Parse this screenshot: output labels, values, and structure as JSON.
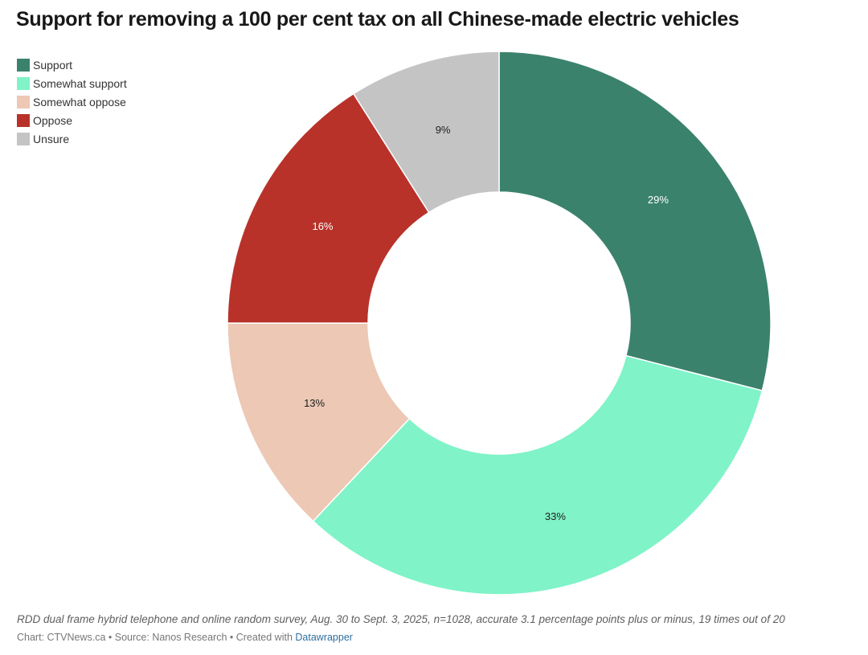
{
  "chart_data": {
    "type": "pie",
    "title": "Support for removing a 100 per cent tax on all Chinese-made electric vehicles",
    "categories": [
      "Support",
      "Somewhat support",
      "Somewhat oppose",
      "Oppose",
      "Unsure"
    ],
    "values": [
      29,
      33,
      13,
      16,
      9
    ],
    "labels": [
      "29%",
      "33%",
      "13%",
      "16%",
      "9%"
    ],
    "colors": [
      "#3b826d",
      "#80f3c8",
      "#ecc8b5",
      "#b8322a",
      "#c4c4c4"
    ],
    "label_colors": [
      "#ffffff",
      "#1d1d1d",
      "#1d1d1d",
      "#ffffff",
      "#1d1d1d"
    ],
    "legend_position": "top-left",
    "notes": "RDD dual frame hybrid telephone and online random survey, Aug. 30 to Sept. 3, 2025, n=1028, accurate 3.1 percentage points plus or minus, 19 times out of 20"
  },
  "footer": {
    "prefix": "Chart: CTVNews.ca • Source: Nanos Research • Created with ",
    "link": "Datawrapper"
  }
}
